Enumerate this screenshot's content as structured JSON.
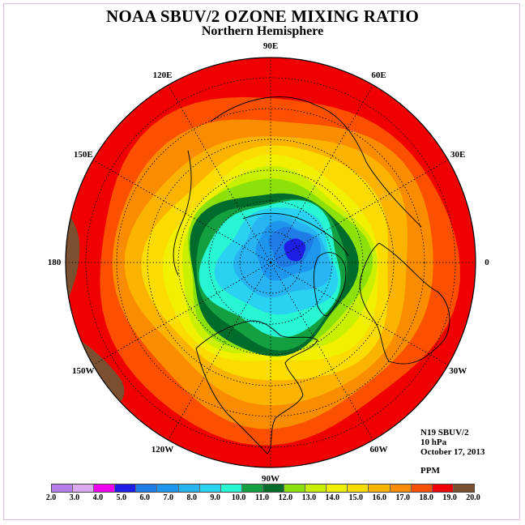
{
  "title": "NOAA SBUV/2 OZONE MIXING RATIO",
  "subtitle": "Northern Hemisphere",
  "longitude_labels": [
    {
      "id": "90e",
      "text": "90E",
      "angle": 90
    },
    {
      "id": "60e",
      "text": "60E",
      "angle": 60
    },
    {
      "id": "30e",
      "text": "30E",
      "angle": 30
    },
    {
      "id": "0",
      "text": "0",
      "angle": 0
    },
    {
      "id": "30w",
      "text": "30W",
      "angle": -30
    },
    {
      "id": "60w",
      "text": "60W",
      "angle": -60
    },
    {
      "id": "90w",
      "text": "90W",
      "angle": -90
    },
    {
      "id": "120w",
      "text": "120W",
      "angle": -120
    },
    {
      "id": "150w",
      "text": "150W",
      "angle": -150
    },
    {
      "id": "180",
      "text": "180",
      "angle": 180
    },
    {
      "id": "150e",
      "text": "150E",
      "angle": 150
    },
    {
      "id": "120e",
      "text": "120E",
      "angle": 120
    }
  ],
  "info": {
    "instrument": "N19 SBUV/2",
    "level": "10 hPa",
    "date": "October 17, 2013",
    "units": "PPM"
  },
  "colorbar": {
    "ticks": [
      "2.0",
      "3.0",
      "4.0",
      "5.0",
      "6.0",
      "7.0",
      "8.0",
      "9.0",
      "10.0",
      "11.0",
      "12.0",
      "13.0",
      "14.0",
      "15.0",
      "16.0",
      "17.0",
      "18.0",
      "19.0",
      "20.0"
    ],
    "colors": [
      "#b57ee8",
      "#dcaaf0",
      "#f000f0",
      "#1e1ee6",
      "#1f7be6",
      "#1e96ee",
      "#28b4f0",
      "#28d2f0",
      "#28f5d2",
      "#14a041",
      "#008c3c",
      "#006c2c",
      "#8ce10a",
      "#c8f000",
      "#f0f000",
      "#fadc00",
      "#fab400",
      "#fa8c00",
      "#fa5000",
      "#f00000",
      "#7a5030"
    ],
    "swatches": [
      "#b57ee8",
      "#dcaaf0",
      "#f000f0",
      "#1e1ee6",
      "#1f7be6",
      "#1e96ee",
      "#28b4f0",
      "#28d2f0",
      "#28f5d2",
      "#14a041",
      "#006c2c",
      "#8ce10a",
      "#c8f000",
      "#f0f000",
      "#fadc00",
      "#fab400",
      "#fa8c00",
      "#fa5000",
      "#f00000",
      "#7a5030"
    ]
  },
  "map_data": {
    "projection": "north-polar-stereographic",
    "bands_ppm": [
      {
        "value": 20,
        "color": "#7a5030"
      },
      {
        "value": 19,
        "color": "#f00000"
      },
      {
        "value": 18,
        "color": "#fa5000"
      },
      {
        "value": 17,
        "color": "#fa8c00"
      },
      {
        "value": 16,
        "color": "#fab400"
      },
      {
        "value": 15,
        "color": "#fadc00"
      },
      {
        "value": 14,
        "color": "#f0f000"
      },
      {
        "value": 13.5,
        "color": "#c8f000"
      },
      {
        "value": 13,
        "color": "#8ce10a"
      },
      {
        "value": 12,
        "color": "#006c2c"
      },
      {
        "value": 11,
        "color": "#14a041"
      },
      {
        "value": 10,
        "color": "#28f5d2"
      },
      {
        "value": 9,
        "color": "#28d2f0"
      },
      {
        "value": 8,
        "color": "#28b4f0"
      },
      {
        "value": 7,
        "color": "#1e96ee"
      },
      {
        "value": 6,
        "color": "#1f7be6"
      },
      {
        "value": 5,
        "color": "#1e1ee6"
      }
    ]
  }
}
